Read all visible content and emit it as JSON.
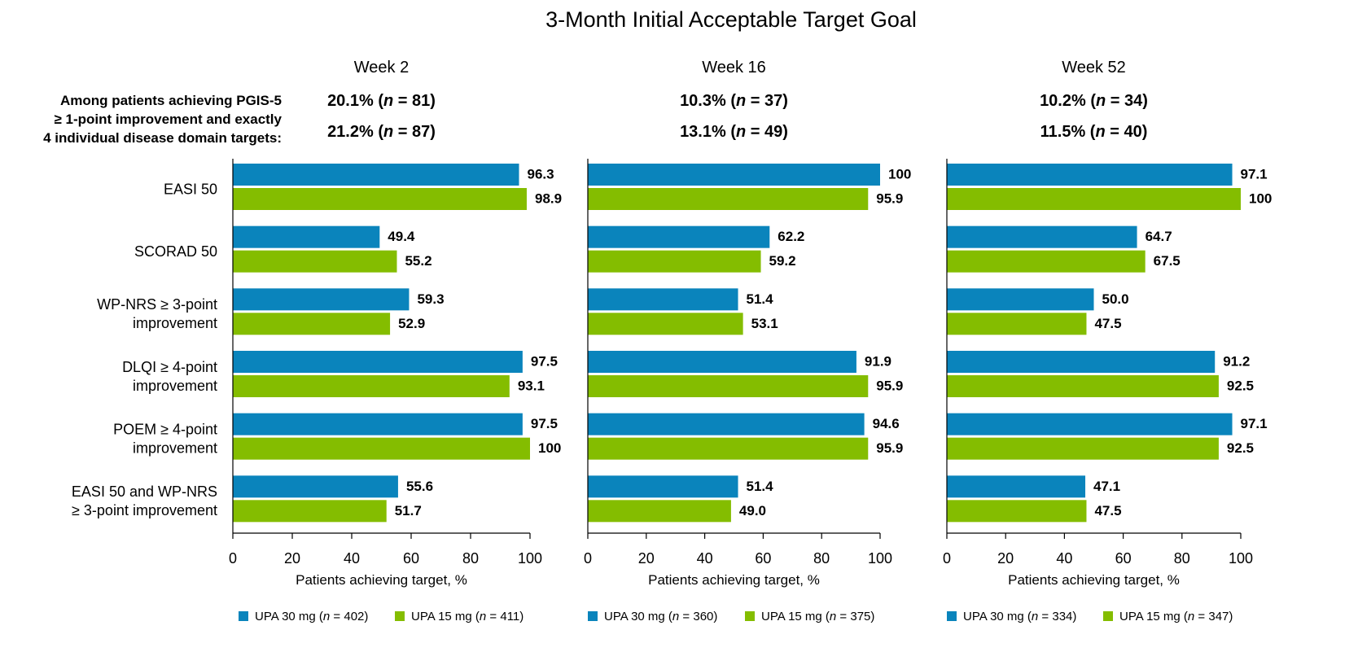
{
  "title": "3-Month Initial Acceptable Target Goal",
  "note": "Among patients achieving PGIS-5\n≥ 1-point improvement and exactly\n4 individual disease domain targets:",
  "chart_data": [
    {
      "type": "bar",
      "orientation": "horizontal",
      "title": "Week 2",
      "categories": [
        "EASI 50",
        "SCORAD 50",
        "WP-NRS ≥ 3-point\nimprovement",
        "DLQI ≥ 4-point\nimprovement",
        "POEM ≥ 4-point\nimprovement",
        "EASI 50 and WP-NRS\n≥ 3-point improvement"
      ],
      "annotations": [
        "20.1% (n = 81)",
        "21.2% (n = 87)"
      ],
      "series": [
        {
          "name": "UPA 30 mg (n = 402)",
          "color": "#0a84bc",
          "values": [
            96.3,
            49.4,
            59.3,
            97.5,
            97.5,
            55.6
          ],
          "value_labels": [
            "96.3",
            "49.4",
            "59.3",
            "97.5",
            "97.5",
            "55.6"
          ]
        },
        {
          "name": "UPA 15 mg (n = 411)",
          "color": "#84bd00",
          "values": [
            98.9,
            55.2,
            52.9,
            93.1,
            100,
            51.7
          ],
          "value_labels": [
            "98.9",
            "55.2",
            "52.9",
            "93.1",
            "100",
            "51.7"
          ]
        }
      ],
      "xlim": [
        0,
        100
      ],
      "xticks": [
        0,
        20,
        40,
        60,
        80,
        100
      ],
      "xlabel": "Patients achieving target, %",
      "grid": false
    },
    {
      "type": "bar",
      "orientation": "horizontal",
      "title": "Week 16",
      "annotations": [
        "10.3% (n = 37)",
        "13.1% (n = 49)"
      ],
      "series": [
        {
          "name": "UPA 30 mg (n = 360)",
          "color": "#0a84bc",
          "values": [
            100,
            62.2,
            51.4,
            91.9,
            94.6,
            51.4
          ],
          "value_labels": [
            "100",
            "62.2",
            "51.4",
            "91.9",
            "94.6",
            "51.4"
          ]
        },
        {
          "name": "UPA 15 mg (n = 375)",
          "color": "#84bd00",
          "values": [
            95.9,
            59.2,
            53.1,
            95.9,
            95.9,
            49.0
          ],
          "value_labels": [
            "95.9",
            "59.2",
            "53.1",
            "95.9",
            "95.9",
            "49.0"
          ]
        }
      ],
      "xlim": [
        0,
        100
      ],
      "xticks": [
        0,
        20,
        40,
        60,
        80,
        100
      ],
      "xlabel": "Patients achieving target, %",
      "grid": false
    },
    {
      "type": "bar",
      "orientation": "horizontal",
      "title": "Week 52",
      "annotations": [
        "10.2% (n = 34)",
        "11.5% (n = 40)"
      ],
      "series": [
        {
          "name": "UPA 30 mg (n = 334)",
          "color": "#0a84bc",
          "values": [
            97.1,
            64.7,
            50.0,
            91.2,
            97.1,
            47.1
          ],
          "value_labels": [
            "97.1",
            "64.7",
            "50.0",
            "91.2",
            "97.1",
            "47.1"
          ]
        },
        {
          "name": "UPA 15 mg (n = 347)",
          "color": "#84bd00",
          "values": [
            100,
            67.5,
            47.5,
            92.5,
            92.5,
            47.5
          ],
          "value_labels": [
            "100",
            "67.5",
            "47.5",
            "92.5",
            "92.5",
            "47.5"
          ]
        }
      ],
      "xlim": [
        0,
        100
      ],
      "xticks": [
        0,
        20,
        40,
        60,
        80,
        100
      ],
      "xlabel": "Patients achieving target, %",
      "grid": false
    }
  ]
}
